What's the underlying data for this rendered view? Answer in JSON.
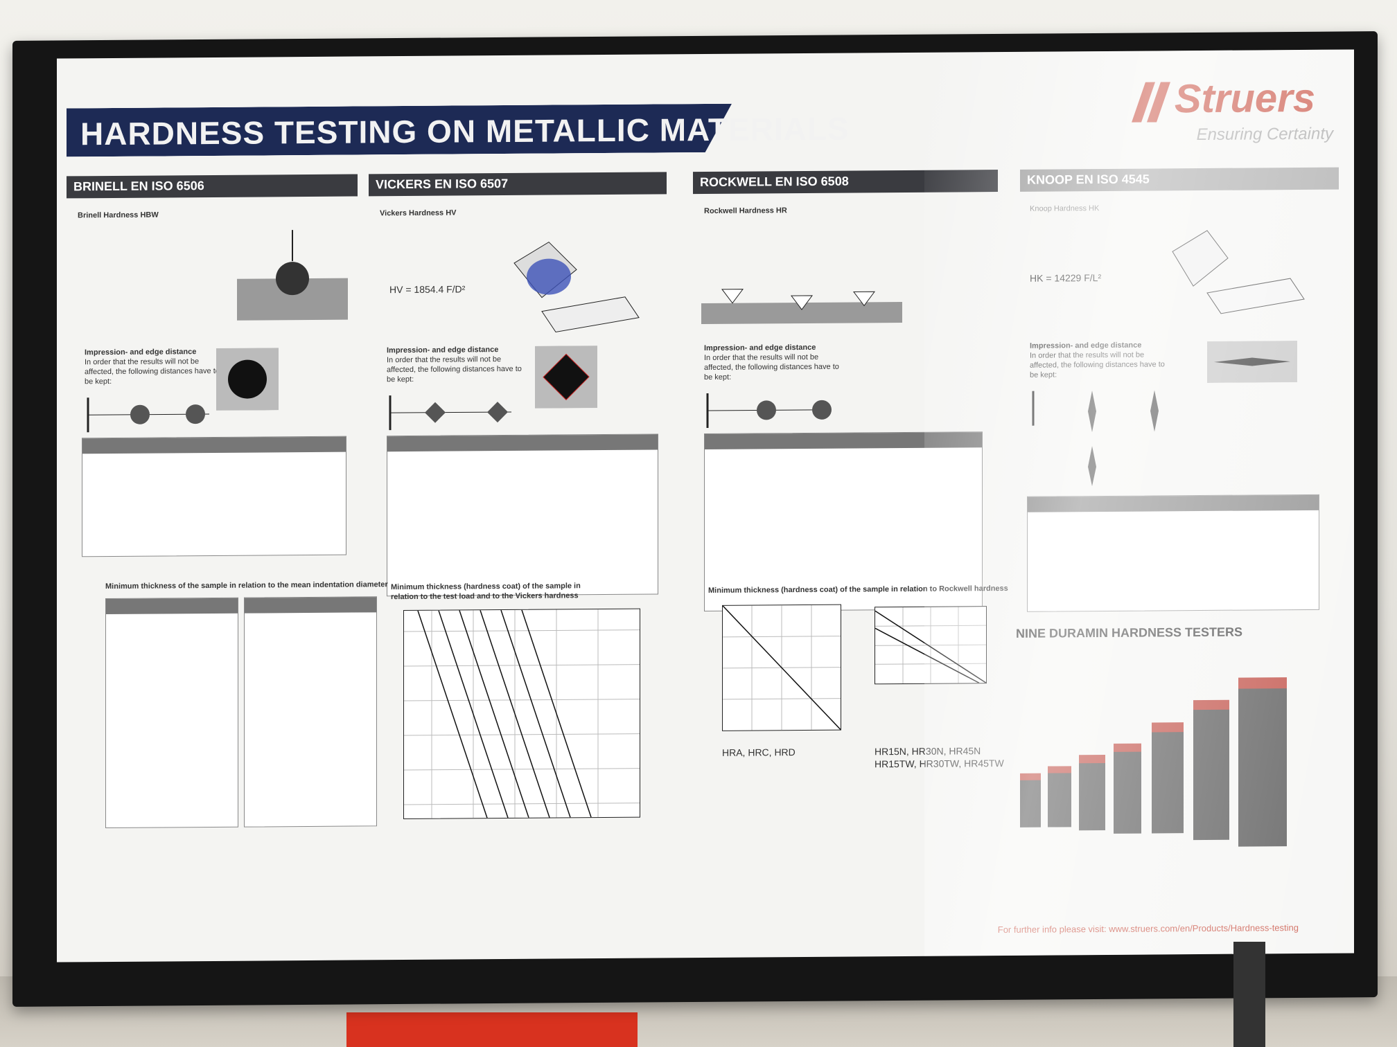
{
  "poster": {
    "title": "HARDNESS TESTING ON METALLIC MATERIALS",
    "brand": "Struers",
    "tagline": "Ensuring Certainty",
    "sections": {
      "brinell": "BRINELL EN ISO 6506",
      "vickers": "VICKERS EN ISO 6507",
      "rockwell": "ROCKWELL EN ISO 6508",
      "knoop": "KNOOP EN ISO 4545"
    },
    "subheads": {
      "brinell": "Brinell Hardness HBW",
      "vickers": "Vickers Hardness HV",
      "rockwell": "Rockwell Hardness HR",
      "knoop": "Knoop Hardness HK"
    },
    "formulas": {
      "vickers": "HV = 1854.4 F/D²",
      "knoop": "HK = 14229 F/L²"
    },
    "impression_heading": "Impression- and edge distance",
    "impression_text": "In order that the results will not be affected, the following distances have to be kept:",
    "brinell_min_thickness": "Minimum thickness of the sample in relation to the mean indentation diameter",
    "vickers_min_thickness": "Minimum thickness (hardness coat) of the sample in relation to the test load and to the Vickers hardness",
    "rockwell_min_thickness": "Minimum thickness (hardness coat) of the sample in relation to Rockwell hardness",
    "rockwell_graph1_caption": "HRA, HRC, HRD",
    "rockwell_graph2_caption": "HR15N, HR30N, HR45N\nHR15TW, HR30TW, HR45TW",
    "product_heading": "NINE DURAMIN HARDNESS TESTERS",
    "footer": "For further info please visit: www.struers.com/en/Products/Hardness-testing"
  }
}
